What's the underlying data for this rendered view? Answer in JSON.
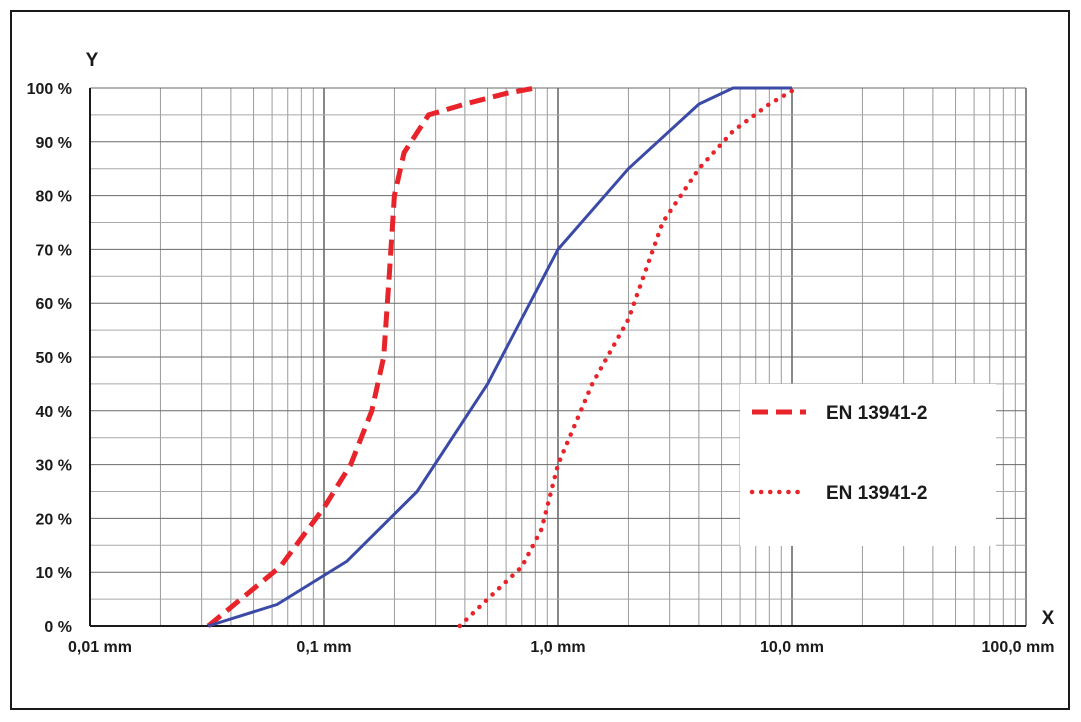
{
  "chart_data": {
    "type": "line",
    "x_scale": "log",
    "xlim": [
      0.01,
      100
    ],
    "ylim": [
      0,
      100
    ],
    "grid": true,
    "xlabel": "X",
    "ylabel": "Y",
    "x_ticks": [
      {
        "value": 0.01,
        "label": "0,01 mm"
      },
      {
        "value": 0.1,
        "label": "0,1 mm"
      },
      {
        "value": 1,
        "label": "1,0 mm"
      },
      {
        "value": 10,
        "label": "10,0 mm"
      },
      {
        "value": 100,
        "label": "100,0 mm"
      }
    ],
    "y_ticks": [
      {
        "value": 0,
        "label": "0 %"
      },
      {
        "value": 10,
        "label": "10 %"
      },
      {
        "value": 20,
        "label": "20 %"
      },
      {
        "value": 30,
        "label": "30 %"
      },
      {
        "value": 40,
        "label": "40 %"
      },
      {
        "value": 50,
        "label": "50 %"
      },
      {
        "value": 60,
        "label": "60 %"
      },
      {
        "value": 70,
        "label": "70 %"
      },
      {
        "value": 80,
        "label": "80 %"
      },
      {
        "value": 90,
        "label": "90 %"
      },
      {
        "value": 100,
        "label": "100 %"
      }
    ],
    "legend_position": "right",
    "series": [
      {
        "name": "EN 13941-2",
        "style": "dashed",
        "color": "#e8232a",
        "in_legend": true,
        "x": [
          0.032,
          0.065,
          0.1,
          0.13,
          0.16,
          0.18,
          0.19,
          0.2,
          0.22,
          0.28,
          0.4,
          0.6,
          0.8
        ],
        "y": [
          0,
          11,
          22,
          30,
          40,
          50,
          65,
          80,
          88,
          95,
          97,
          99,
          100
        ]
      },
      {
        "name": "",
        "style": "solid",
        "color": "#3a4aa6",
        "in_legend": false,
        "x": [
          0.032,
          0.063,
          0.125,
          0.25,
          0.5,
          1.0,
          2.0,
          4.0,
          5.6,
          8.0,
          10.0
        ],
        "y": [
          0,
          4,
          12,
          25,
          45,
          70,
          85,
          97,
          100,
          100,
          100
        ]
      },
      {
        "name": "EN 13941-2",
        "style": "dotted",
        "color": "#e8232a",
        "in_legend": true,
        "x": [
          0.38,
          0.5,
          0.7,
          0.85,
          1.0,
          1.4,
          2.0,
          2.8,
          4.0,
          5.6,
          8.0,
          10.5
        ],
        "y": [
          0,
          5,
          11,
          18,
          30,
          45,
          57,
          75,
          85,
          92,
          97,
          100
        ]
      }
    ]
  }
}
